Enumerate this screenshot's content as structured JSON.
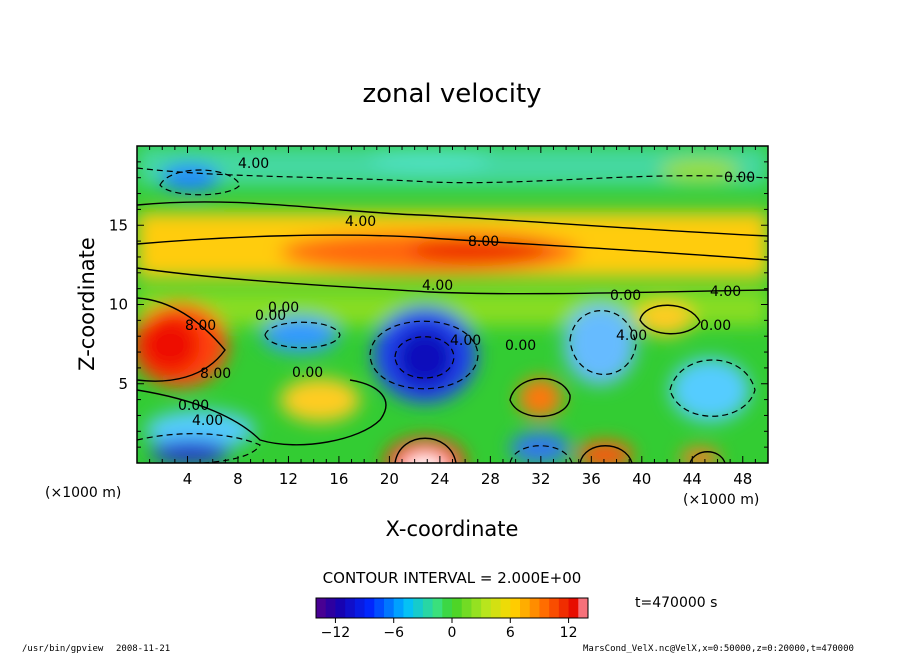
{
  "chart_data": {
    "type": "heatmap",
    "title": "zonal velocity",
    "xlabel": "X-coordinate",
    "ylabel": "Z-coordinate",
    "x_scale_label_left": "(×1000 m)",
    "x_scale_label_right": "(×1000 m)",
    "xlim": [
      0,
      50
    ],
    "ylim": [
      0,
      20
    ],
    "x_ticks": [
      "4",
      "8",
      "12",
      "16",
      "20",
      "24",
      "28",
      "32",
      "36",
      "40",
      "44",
      "48"
    ],
    "y_ticks": [
      "5",
      "10",
      "15"
    ],
    "contour_interval_label": "CONTOUR INTERVAL = 2.000E+00",
    "colorbar": {
      "min": -14,
      "max": 14,
      "ticks": [
        "−12",
        "−6",
        "0",
        "6",
        "12"
      ],
      "tick_values": [
        -12,
        -6,
        0,
        6,
        12
      ]
    },
    "time_label": "t=470000 s",
    "contour_labels": [
      "4.00",
      "0.00",
      "4.00",
      "8.00",
      "4.00",
      "0.00",
      "4.00",
      "0.00",
      "0.00",
      "8.00",
      "8.00",
      "0.00",
      "0.00",
      "4.00",
      "4.00",
      "0.00",
      "4.00",
      "0.00"
    ],
    "features": [
      {
        "name": "upper negative band",
        "x_range": [
          0,
          50
        ],
        "z_range": [
          16,
          20
        ],
        "value": -3
      },
      {
        "name": "jet core",
        "x_range": [
          8,
          34
        ],
        "z_range": [
          12,
          14
        ],
        "value": 9
      },
      {
        "name": "western positive lobe",
        "x_range": [
          0,
          8
        ],
        "z_range": [
          4,
          10
        ],
        "value": 10
      },
      {
        "name": "central vortex minimum",
        "x_center": 23,
        "z_center": 6.5,
        "value": -12
      },
      {
        "name": "bottom maximum",
        "x_center": 23,
        "z_center": 0.5,
        "value": 14
      },
      {
        "name": "local maximum",
        "x_center": 32,
        "z_center": 4,
        "value": 8
      }
    ]
  },
  "footer": {
    "program": "/usr/bin/gpview",
    "date": "2008-11-21",
    "source": "MarsCond_VelX.nc@VelX,x=0:50000,z=0:20000,t=470000"
  }
}
